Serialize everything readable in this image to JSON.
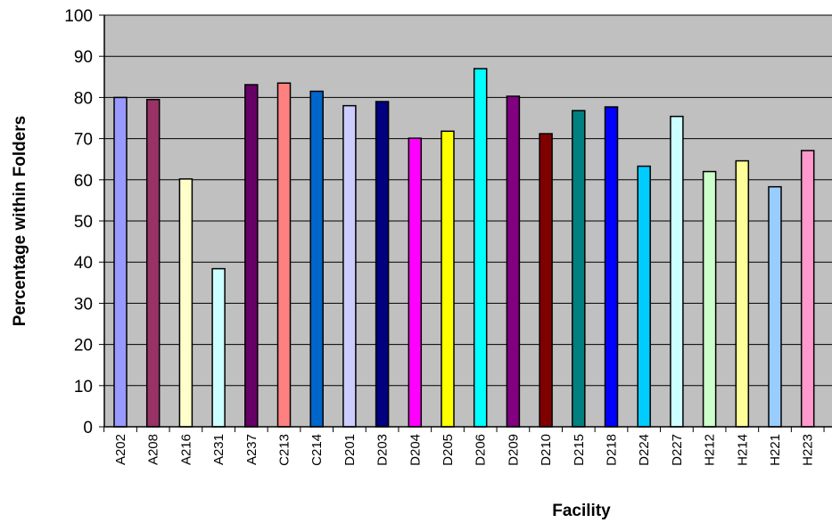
{
  "chart_data": {
    "type": "bar",
    "title": "",
    "xlabel": "Facility",
    "ylabel": "Percentage within Folders",
    "ylim": [
      0,
      100
    ],
    "yticks": [
      0,
      10,
      20,
      30,
      40,
      50,
      60,
      70,
      80,
      90,
      100
    ],
    "grid": true,
    "legend": "none",
    "plot_background": "#c0c0c0",
    "categories": [
      "A202",
      "A208",
      "A216",
      "A231",
      "A237",
      "C213",
      "C214",
      "D201",
      "D203",
      "D204",
      "D205",
      "D206",
      "D209",
      "D210",
      "D215",
      "D218",
      "D224",
      "D227",
      "H212",
      "H214",
      "H221",
      "H223"
    ],
    "values": [
      80.0,
      79.5,
      60.2,
      38.4,
      83.1,
      83.5,
      81.5,
      78.0,
      79.0,
      70.1,
      71.8,
      87.0,
      80.3,
      71.2,
      76.8,
      77.7,
      63.3,
      75.4,
      62.0,
      64.6,
      58.3,
      67.1
    ],
    "colors": [
      "#9999ff",
      "#993366",
      "#ffffcc",
      "#ccffff",
      "#660066",
      "#ff8080",
      "#0066cc",
      "#ccccff",
      "#000080",
      "#ff00ff",
      "#ffff00",
      "#00ffff",
      "#800080",
      "#800000",
      "#008080",
      "#0000ff",
      "#00ccff",
      "#ccffff",
      "#ccffcc",
      "#ffff99",
      "#99ccff",
      "#ff99cc"
    ]
  }
}
